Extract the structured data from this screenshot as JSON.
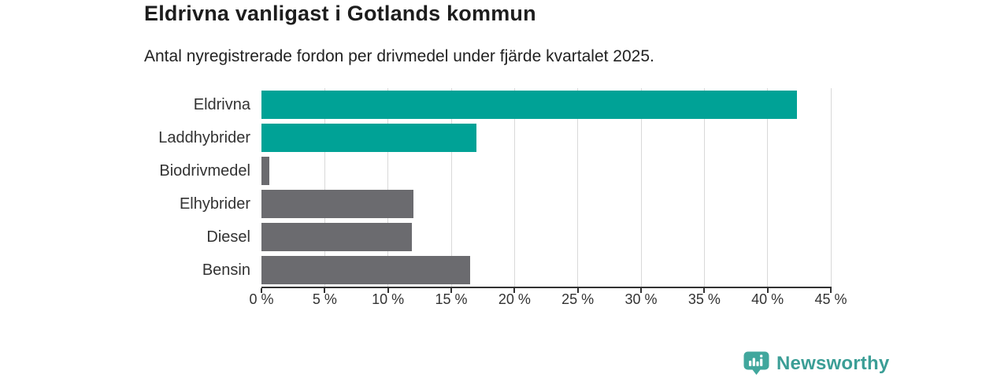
{
  "header": {
    "title": "Eldrivna vanligast i Gotlands kommun",
    "subtitle": "Antal nyregistrerade fordon per drivmedel under fjärde kvartalet 2025."
  },
  "chart_data": {
    "type": "bar",
    "orientation": "horizontal",
    "title": "Eldrivna vanligast i Gotlands kommun",
    "subtitle": "Antal nyregistrerade fordon per drivmedel under fjärde kvartalet 2025.",
    "categories": [
      "Eldrivna",
      "Laddhybrider",
      "Biodrivmedel",
      "Elhybrider",
      "Diesel",
      "Bensin"
    ],
    "values": [
      42.3,
      17.0,
      0.6,
      12.0,
      11.9,
      16.5
    ],
    "unit": "%",
    "bar_colors": [
      "#00A296",
      "#00A296",
      "#6B6B6F",
      "#6B6B6F",
      "#6B6B6F",
      "#6B6B6F"
    ],
    "highlight_color": "#00A296",
    "default_color": "#6B6B6F",
    "xlabel": "",
    "ylabel": "",
    "xlim": [
      0,
      45
    ],
    "x_ticks": [
      0,
      5,
      10,
      15,
      20,
      25,
      30,
      35,
      40,
      45
    ],
    "x_tick_suffix": " %",
    "x_tick_labels": [
      "0 %",
      "5 %",
      "10 %",
      "15 %",
      "20 %",
      "25 %",
      "30 %",
      "35 %",
      "40 %",
      "45 %"
    ],
    "grid": "vertical",
    "gridline_color": "#D9D9D9",
    "axis_color": "#333333",
    "legend": "none"
  },
  "footer": {
    "brand": "Newsworthy",
    "brand_color": "#3B9E96",
    "logo_icon": "newsworthy-pin-barchart-icon",
    "logo_badge_color": "#41A79D"
  }
}
